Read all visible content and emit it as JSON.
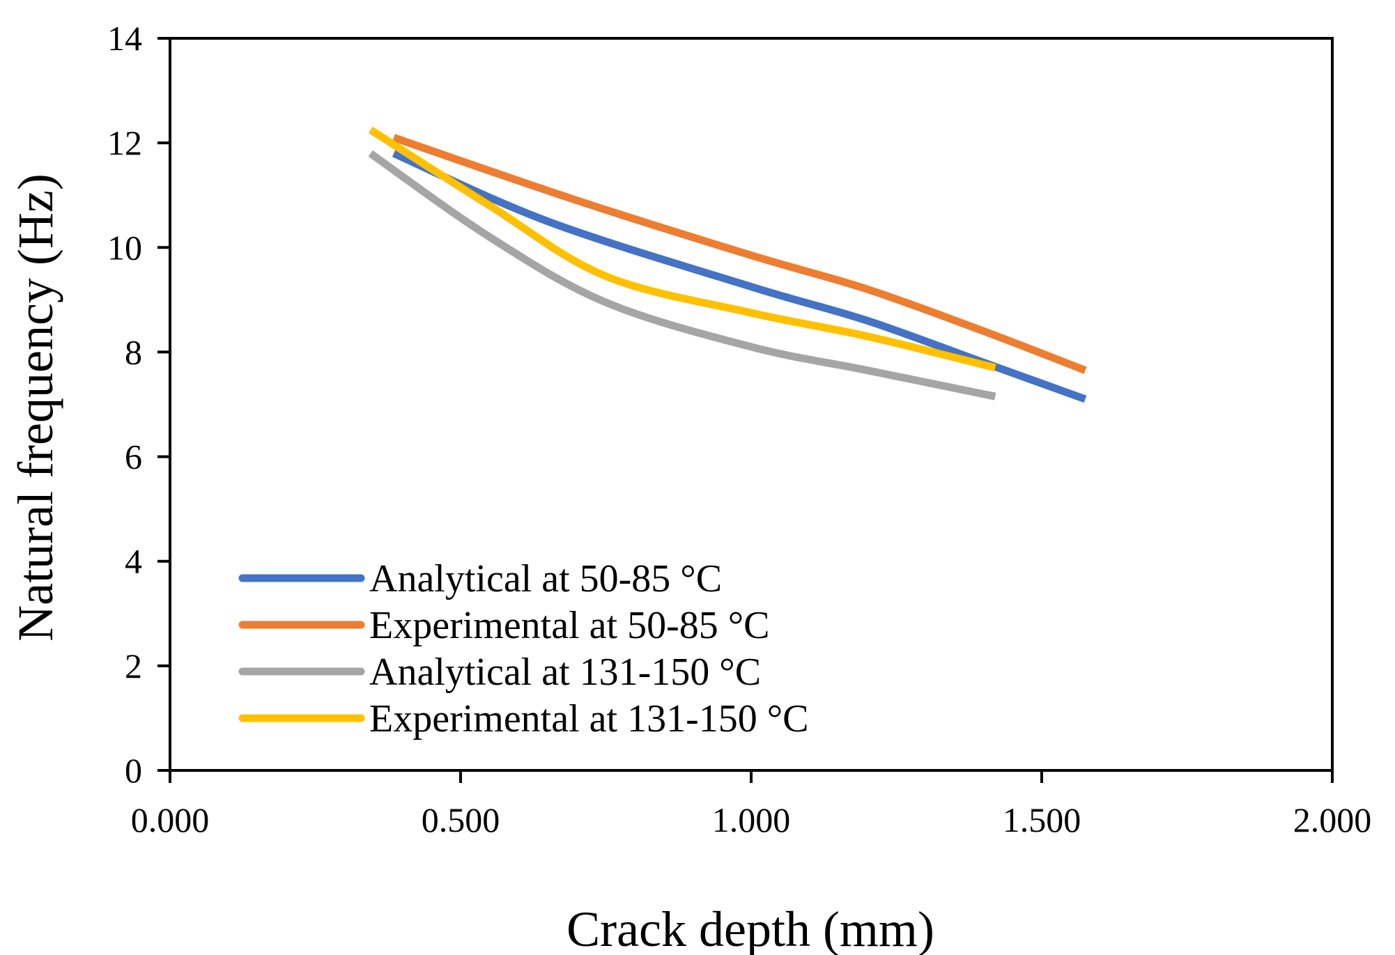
{
  "chart_data": {
    "type": "line",
    "title": "",
    "xlabel": "Crack depth (mm)",
    "ylabel": "Natural frequency (Hz)",
    "xlim": [
      0,
      2
    ],
    "ylim": [
      0,
      14
    ],
    "xticks": [
      0,
      0.5,
      1,
      1.5,
      2
    ],
    "xtick_labels": [
      "0.000",
      "0.500",
      "1.000",
      "1.500",
      "2.000"
    ],
    "yticks": [
      0,
      2,
      4,
      6,
      8,
      10,
      12,
      14
    ],
    "ytick_labels": [
      "0",
      "2",
      "4",
      "6",
      "8",
      "10",
      "12",
      "14"
    ],
    "grid": false,
    "legend_position": "bottom-left",
    "series": [
      {
        "name": "Analytical at 50-85 °C",
        "color": "#4472C4",
        "x": [
          0.385,
          0.65,
          1.0,
          1.2,
          1.4,
          1.575
        ],
        "y": [
          11.8,
          10.5,
          9.25,
          8.6,
          7.8,
          7.1
        ]
      },
      {
        "name": "Experimental at 50-85 °C",
        "color": "#ED7D31",
        "x": [
          0.385,
          0.7,
          1.0,
          1.2,
          1.4,
          1.575
        ],
        "y": [
          12.1,
          10.9,
          9.85,
          9.2,
          8.4,
          7.65
        ]
      },
      {
        "name": "Analytical at 131-150 °C",
        "color": "#A5A5A5",
        "x": [
          0.345,
          0.55,
          0.75,
          1.0,
          1.2,
          1.42
        ],
        "y": [
          11.8,
          10.2,
          8.95,
          8.1,
          7.65,
          7.15
        ]
      },
      {
        "name": "Experimental at 131-150 °C",
        "color": "#FFC000",
        "x": [
          0.345,
          0.55,
          0.75,
          1.0,
          1.2,
          1.42
        ],
        "y": [
          12.25,
          10.8,
          9.45,
          8.75,
          8.3,
          7.7
        ]
      }
    ]
  }
}
